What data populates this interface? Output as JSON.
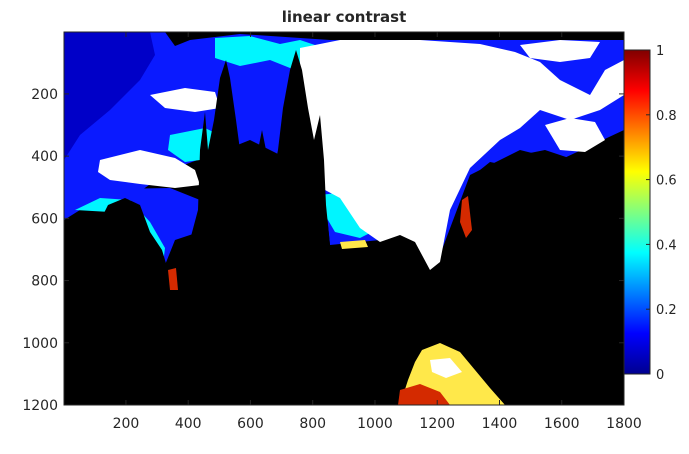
{
  "chart_data": {
    "type": "heatmap",
    "title": "linear contrast",
    "xlabel": "",
    "ylabel": "",
    "xlim": [
      1,
      1800
    ],
    "ylim": [
      1200,
      1
    ],
    "x_ticks": [
      200,
      400,
      600,
      800,
      1000,
      1200,
      1400,
      1600,
      1800
    ],
    "y_ticks": [
      200,
      400,
      600,
      800,
      1000,
      1200
    ],
    "colormap": "jet",
    "colorbar": {
      "range": [
        0,
        1
      ],
      "ticks": [
        0,
        0.2,
        0.4,
        0.6,
        0.8,
        1
      ],
      "tick_labels": [
        "0",
        "0.2",
        "0.4",
        "0.6",
        "0.8",
        "1"
      ]
    },
    "image_description": "photo of Prague Old Town square with church spires in silhouette; sky saturated to white/cyan/blue, foreground black, lit street in yellow-red near bottom center"
  },
  "colors": {
    "black": "#000000",
    "white": "#ffffff",
    "cyan": "#00f5ff",
    "blue": "#0a1aff",
    "deep_blue": "#0000c8",
    "yellow": "#ffe84a",
    "red": "#d42a00",
    "axis": "#262626"
  }
}
